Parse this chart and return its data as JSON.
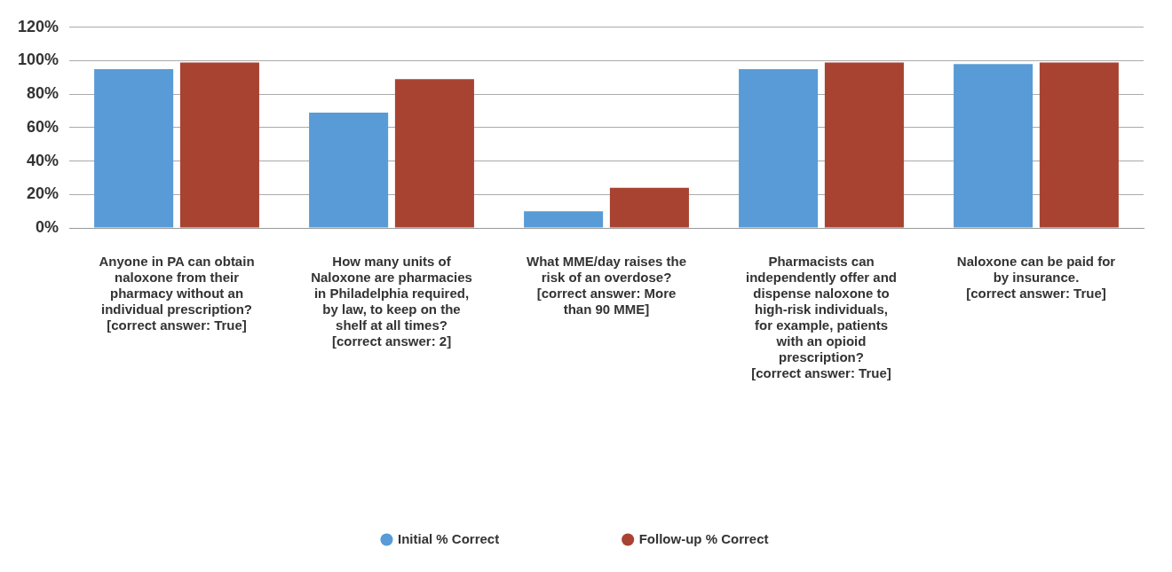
{
  "chart_data": {
    "type": "bar",
    "categories": [
      "Anyone in PA can obtain naloxone from their pharmacy without an individual prescription? [correct answer: True]",
      "How many units of Naloxone are pharmacies in Philadelphia required, by law, to keep on the shelf at all times? [correct answer: 2]",
      "What MME/day raises the risk of an overdose? [correct answer: More than 90 MME]",
      "Pharmacists can independently offer and dispense naloxone to high-risk individuals, for example, patients with an opioid prescription? [correct answer: True]",
      "Naloxone can be paid for by insurance. [correct answer: True]"
    ],
    "series": [
      {
        "name": "Initial % Correct",
        "color": "#589bd6",
        "values": [
          95,
          69,
          10,
          95,
          98
        ]
      },
      {
        "name": "Follow-up % Correct",
        "color": "#a84332",
        "values": [
          99,
          89,
          24,
          99,
          99
        ]
      }
    ],
    "ylim": [
      0,
      120
    ],
    "yticks": [
      {
        "value": 0,
        "label": "0%"
      },
      {
        "value": 20,
        "label": "20%"
      },
      {
        "value": 40,
        "label": "40%"
      },
      {
        "value": 60,
        "label": "60%"
      },
      {
        "value": 80,
        "label": "80%"
      },
      {
        "value": 100,
        "label": "100%"
      },
      {
        "value": 120,
        "label": "120%"
      }
    ],
    "grid": "y",
    "legend": "bottom"
  }
}
